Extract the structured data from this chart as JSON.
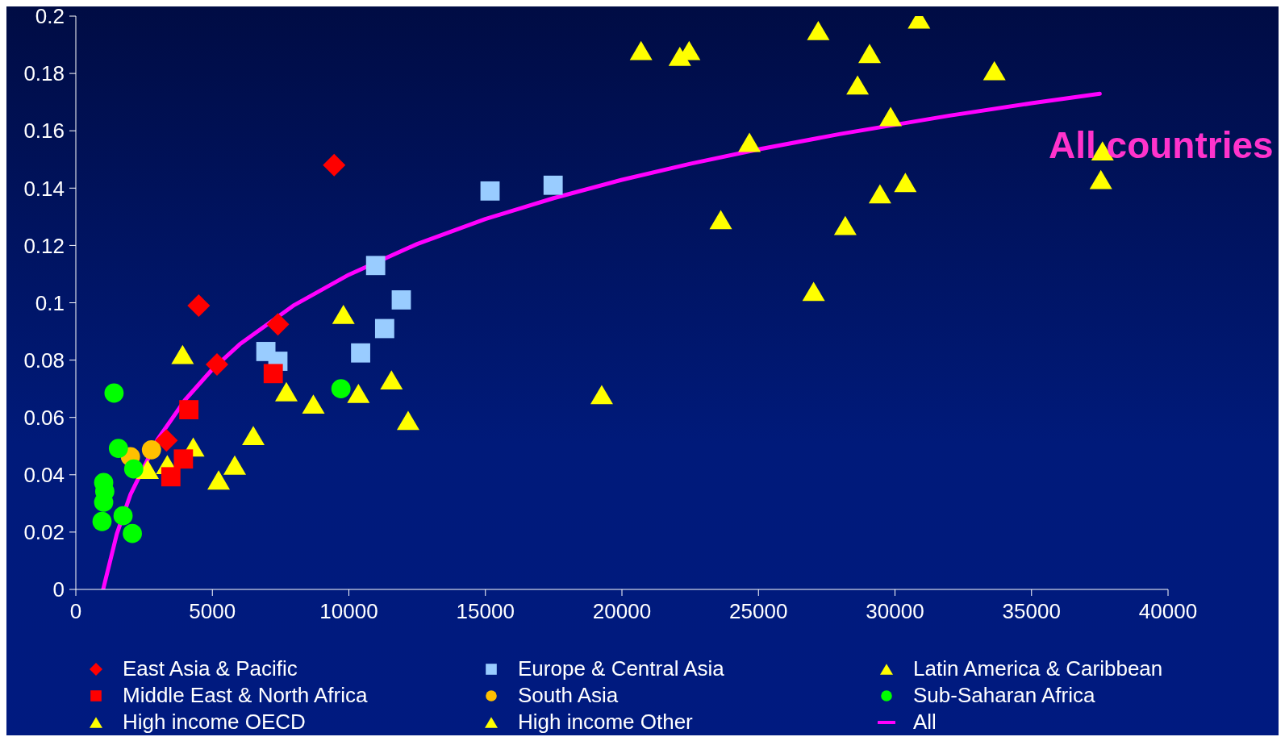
{
  "chart_data": {
    "type": "scatter",
    "annotations": [
      "All countries"
    ],
    "xlim": [
      0,
      40000
    ],
    "xticks": [
      0,
      5000,
      10000,
      15000,
      20000,
      25000,
      30000,
      35000,
      40000
    ],
    "ylim": [
      0,
      0.2
    ],
    "yticks": [
      0,
      0.02,
      0.04,
      0.06,
      0.08,
      0.1,
      0.12,
      0.14,
      0.16,
      0.18,
      0.2
    ],
    "legend": "bottom",
    "series": [
      {
        "name": "East Asia & Pacific",
        "color": "#ff0000",
        "marker": "diamond",
        "x": [
          4500,
          7400,
          5170,
          3320,
          9460
        ],
        "values": [
          0.099,
          0.0925,
          0.0785,
          0.052,
          0.148
        ]
      },
      {
        "name": "Europe & Central Asia",
        "color": "#99ccff",
        "marker": "square",
        "x": [
          15170,
          17480,
          10980,
          11920,
          11310,
          10430,
          6960,
          7400
        ],
        "values": [
          0.139,
          0.141,
          0.113,
          0.101,
          0.091,
          0.0825,
          0.083,
          0.0796
        ]
      },
      {
        "name": "Latin America & Caribbean",
        "color": "#ffff00",
        "marker": "triangle",
        "x": [
          3910,
          9800,
          7710,
          8700,
          10350,
          11560,
          12170,
          6500,
          5820,
          5230,
          4300,
          2630,
          3350
        ],
        "values": [
          0.081,
          0.095,
          0.068,
          0.0637,
          0.0674,
          0.0721,
          0.058,
          0.0527,
          0.0424,
          0.0372,
          0.0487,
          0.0409,
          0.0426
        ]
      },
      {
        "name": "Middle East & North Africa",
        "color": "#ff0000",
        "marker": "square",
        "x": [
          4140,
          7230,
          3940,
          3480
        ],
        "values": [
          0.0627,
          0.0753,
          0.0455,
          0.0393
        ]
      },
      {
        "name": "South Asia",
        "color": "#ffc000",
        "marker": "circle",
        "x": [
          2000,
          2770
        ],
        "values": [
          0.0463,
          0.0487
        ]
      },
      {
        "name": "Sub-Saharan Africa",
        "color": "#00ff00",
        "marker": "circle",
        "x": [
          1400,
          1560,
          2120,
          1020,
          1060,
          1020,
          960,
          1730,
          2070,
          9710
        ],
        "values": [
          0.0685,
          0.0492,
          0.042,
          0.0373,
          0.0342,
          0.0304,
          0.0237,
          0.0257,
          0.0195,
          0.07
        ]
      },
      {
        "name": "High income OECD",
        "color": "#ffff00",
        "marker": "triangle",
        "x": [
          20700,
          22460,
          27190,
          30880,
          29070,
          28630,
          29840,
          24670,
          23620,
          28180,
          29450,
          30380,
          27020,
          33640,
          37600,
          37540
        ],
        "values": [
          0.187,
          0.187,
          0.194,
          0.198,
          0.186,
          0.175,
          0.164,
          0.155,
          0.128,
          0.126,
          0.137,
          0.141,
          0.103,
          0.18,
          0.152,
          0.142
        ]
      },
      {
        "name": "High income Other",
        "color": "#ffff00",
        "marker": "triangle",
        "x": [
          22120,
          19260
        ],
        "values": [
          0.185,
          0.067
        ]
      },
      {
        "name": "All",
        "type": "line",
        "color": "#ff00ff",
        "marker": "none",
        "x": [
          1000,
          1500,
          2000,
          3000,
          4000,
          5000,
          6000,
          8000,
          10000,
          12500,
          15000,
          17500,
          20000,
          22500,
          25000,
          28000,
          32000,
          35000,
          37500
        ],
        "values": [
          0,
          0.0193,
          0.0331,
          0.0524,
          0.0661,
          0.0768,
          0.0855,
          0.0992,
          0.1098,
          0.1205,
          0.1292,
          0.1365,
          0.1429,
          0.1485,
          0.1535,
          0.1589,
          0.1653,
          0.1696,
          0.1729
        ]
      }
    ]
  }
}
